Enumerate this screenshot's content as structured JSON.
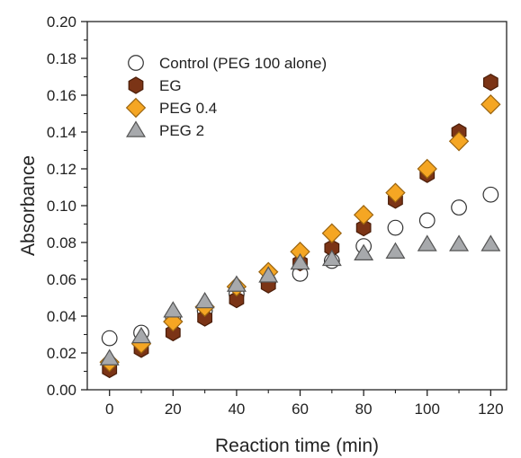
{
  "chart_data": {
    "type": "scatter",
    "xlabel": "Reaction time (min)",
    "ylabel": "Absorbance",
    "xlim": [
      -7,
      125
    ],
    "ylim": [
      0,
      0.2
    ],
    "x_ticks": [
      0,
      20,
      40,
      60,
      80,
      100,
      120
    ],
    "y_ticks": [
      0.0,
      0.02,
      0.04,
      0.06,
      0.08,
      0.1,
      0.12,
      0.14,
      0.16,
      0.18,
      0.2
    ],
    "x_tick_labels": [
      "0",
      "20",
      "40",
      "60",
      "80",
      "100",
      "120"
    ],
    "y_tick_labels": [
      "0.00",
      "0.02",
      "0.04",
      "0.06",
      "0.08",
      "0.10",
      "0.12",
      "0.14",
      "0.16",
      "0.18",
      "0.20"
    ],
    "grid": false,
    "legend_position": "top-left",
    "x": [
      0,
      10,
      20,
      30,
      40,
      50,
      60,
      70,
      80,
      90,
      100,
      110,
      120
    ],
    "series": [
      {
        "name": "Control (PEG 100 alone)",
        "marker": "circle",
        "fill": "#ffffff",
        "stroke": "#333333",
        "values": [
          0.028,
          0.031,
          0.039,
          0.043,
          0.052,
          0.059,
          0.063,
          0.07,
          0.078,
          0.088,
          0.092,
          0.099,
          0.106
        ]
      },
      {
        "name": "EG",
        "marker": "hexagon",
        "fill": "#7b3416",
        "stroke": "#4a1d08",
        "values": [
          0.011,
          0.022,
          0.031,
          0.039,
          0.049,
          0.057,
          0.069,
          0.077,
          0.088,
          0.103,
          0.117,
          0.14,
          0.167
        ]
      },
      {
        "name": "PEG 0.4",
        "marker": "diamond",
        "fill": "#f5a623",
        "stroke": "#9a6410",
        "values": [
          0.015,
          0.025,
          0.037,
          0.045,
          0.056,
          0.064,
          0.075,
          0.085,
          0.095,
          0.107,
          0.12,
          0.135,
          0.155
        ]
      },
      {
        "name": "PEG 2",
        "marker": "triangle",
        "fill": "#a7a9ac",
        "stroke": "#555555",
        "values": [
          0.017,
          0.029,
          0.043,
          0.048,
          0.057,
          0.062,
          0.069,
          0.071,
          0.074,
          0.075,
          0.079,
          0.079,
          0.079
        ]
      }
    ]
  }
}
